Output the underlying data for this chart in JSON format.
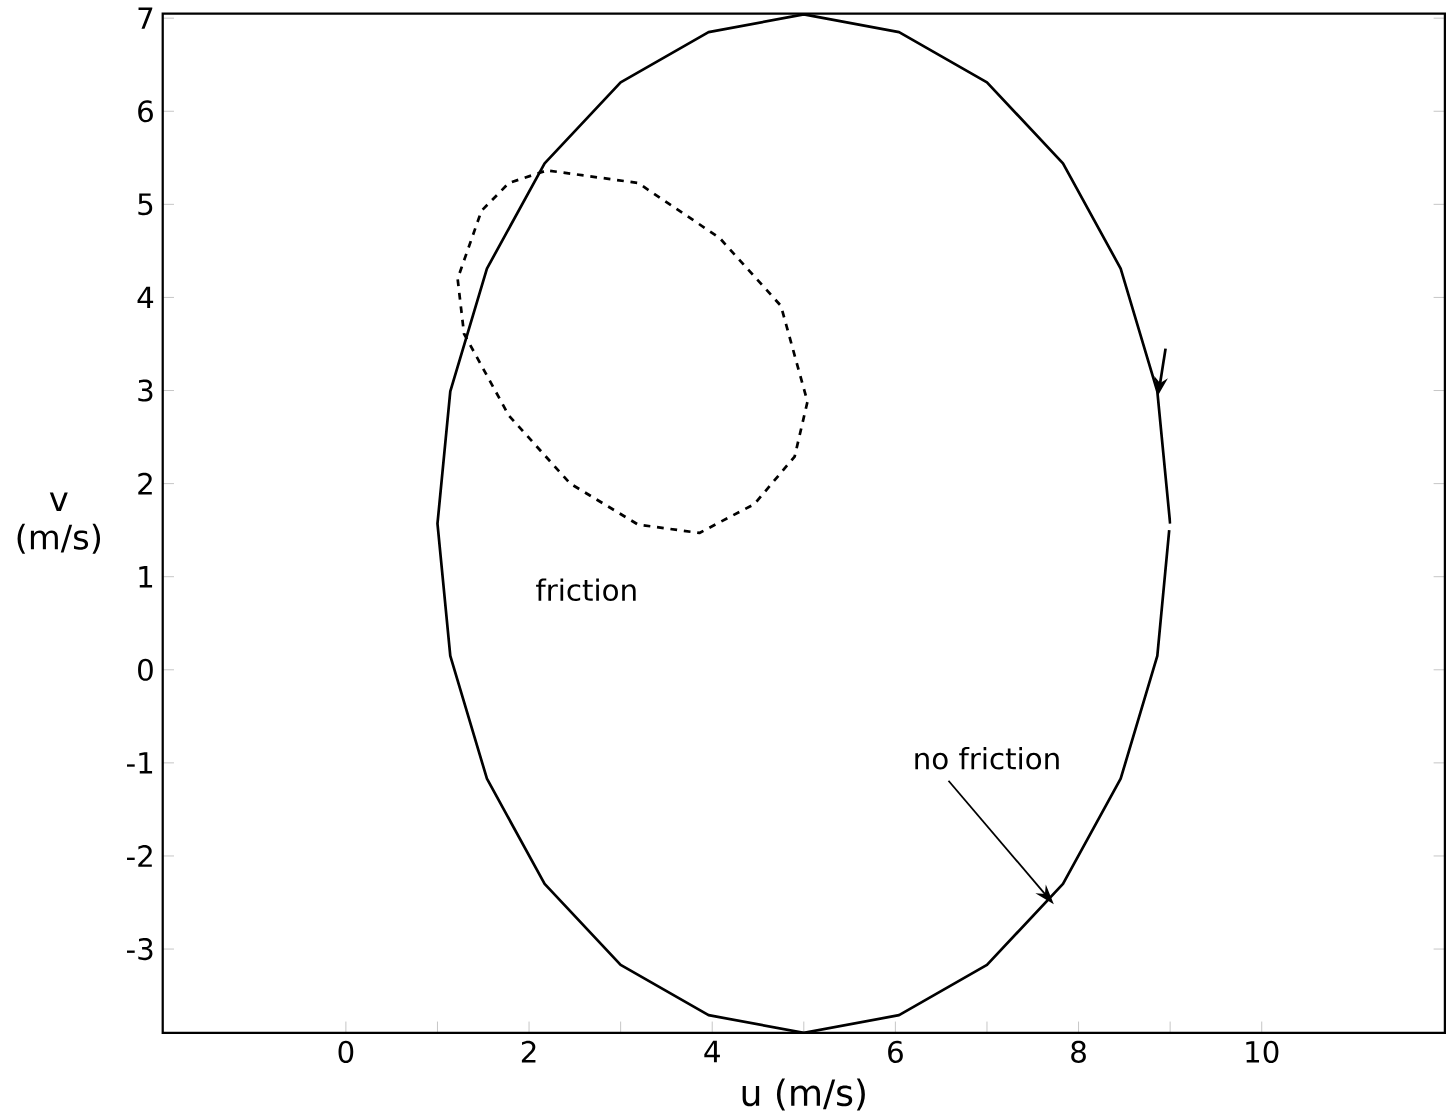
{
  "chart_data": {
    "type": "line",
    "xlabel": "u (m/s)",
    "ylabel": "v (m/s)",
    "xlim": [
      -2,
      12
    ],
    "ylim": [
      -3.9,
      7.05
    ],
    "xticks": [
      0,
      {
        "value": 1,
        "label": null
      },
      2,
      {
        "value": 3,
        "label": null
      },
      4,
      {
        "value": 5,
        "label": null
      },
      6,
      {
        "value": 7,
        "label": null
      },
      8,
      {
        "value": 9,
        "label": null
      },
      10
    ],
    "yticks": [
      -3,
      -2,
      -1,
      0,
      1,
      2,
      3,
      4,
      5,
      6,
      7
    ],
    "annotations": [
      "friction",
      {
        "text": "no friction",
        "x": 7.73,
        "y": -2.52
      }
    ],
    "series": [
      {
        "color": "#000000",
        "line_style": "solid",
        "x": [
          9,
          8.86,
          8.46,
          7.83,
          7.0,
          6.04,
          5,
          3.96,
          3.0,
          2.17,
          1.54,
          1.14,
          1.0,
          1.14,
          1.54,
          2.17,
          3.0,
          3.96,
          5,
          6.04,
          7.0,
          7.83,
          8.46,
          8.86,
          8.99
        ],
        "values": [
          1.57,
          2.99,
          4.31,
          5.44,
          6.31,
          6.85,
          7.04,
          6.85,
          6.31,
          5.44,
          4.31,
          2.99,
          1.57,
          0.15,
          -1.17,
          -2.3,
          -3.17,
          -3.71,
          -3.9,
          -3.71,
          -3.17,
          -2.3,
          -1.17,
          0.15,
          1.5
        ]
      },
      {
        "color": "#000000",
        "line_style": "dashed",
        "x": [
          2.23,
          3.19,
          4.08,
          4.75,
          5.04,
          4.9,
          4.46,
          3.86,
          3.19,
          2.45,
          1.78,
          1.29,
          1.22,
          1.48,
          1.78,
          2.18
        ],
        "values": [
          5.36,
          5.23,
          4.64,
          3.91,
          2.88,
          2.29,
          1.78,
          1.47,
          1.56,
          2.0,
          2.73,
          3.61,
          4.2,
          4.93,
          5.23,
          5.36
        ]
      }
    ]
  }
}
